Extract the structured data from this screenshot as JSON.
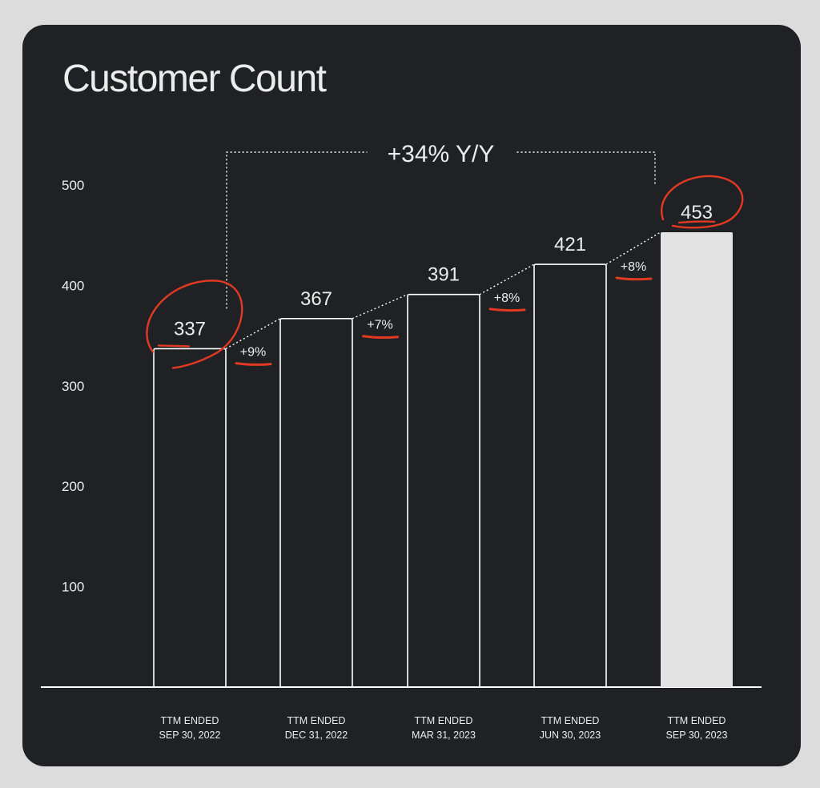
{
  "chart_data": {
    "type": "bar",
    "title": "Customer Count",
    "categories": [
      [
        "TTM ENDED",
        "SEP 30, 2022"
      ],
      [
        "TTM ENDED",
        "DEC 31, 2022"
      ],
      [
        "TTM ENDED",
        "MAR 31, 2023"
      ],
      [
        "TTM ENDED",
        "JUN 30, 2023"
      ],
      [
        "TTM ENDED",
        "SEP 30, 2023"
      ]
    ],
    "values": [
      337,
      367,
      391,
      421,
      453
    ],
    "value_labels": [
      "337",
      "367",
      "391",
      "421",
      "453"
    ],
    "yticks": [
      "100",
      "200",
      "300",
      "400",
      "500"
    ],
    "ylim": [
      0,
      500
    ],
    "growth_labels": [
      "+9%",
      "+7%",
      "+8%",
      "+8%"
    ],
    "yoy_label": "+34% Y/Y",
    "highlighted_bar": 4,
    "colors": {
      "background": "#dcdcdc",
      "card": "#202124",
      "text": "#ececec",
      "bar_outline": "#ffffff",
      "highlight_fill": "#e3e3e3",
      "annotation": "#e23a22"
    },
    "grid": false
  }
}
